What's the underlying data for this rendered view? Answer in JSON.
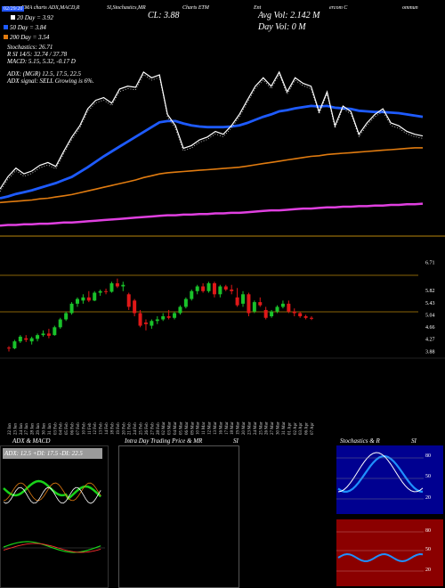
{
  "header": {
    "title_left": "EMA charts ADX,MACD,R",
    "title_mid": "SI,Stochastics,MR",
    "title_mid2": "Charts ETM",
    "title_right1": "Ent",
    "title_right2": "ercom C",
    "title_right3": "ommun",
    "close": "CL: 3.88",
    "avg_vol": "Avg Vol: 2.142  M",
    "day_vol": "Day Vol: 0   M",
    "date_tag": "02/29/20",
    "ema20": "20  Day = 3.92",
    "ema50": "50  Day = 3.84",
    "ema200": "200  Day = 3.54",
    "stoch": "Stochastics: 26.71",
    "rsi": "R                SI 14/5: 32.74  / 37.78",
    "macd": "MACD: 5.15, 5.32, -0.17 D",
    "adx": "ADX:                              (MGR) 12.5,  17.5,  22.5",
    "adx_signal": "ADX  signal: SELL Growing is 6%."
  },
  "price_axis": [
    "6.71",
    "5.82",
    "5.43",
    "5.04",
    "4.66",
    "4.27",
    "3.88"
  ],
  "bottom_labels": {
    "adx_panel": "ADX  & MACD",
    "intra_panel": "Intra  Day Trading Price  & MR",
    "intra_si": "SI",
    "stoch_panel": "Stochastics  & R",
    "stoch_si": "SI",
    "adx_readout": "ADX: 12.5  +DI: 17.5  -DI: 22.5",
    "stoch_ticks": [
      "80",
      "50",
      "20"
    ],
    "rsi_ticks": [
      "80",
      "50",
      "20"
    ]
  },
  "colors": {
    "ema_blue": "#1e5bff",
    "ema_orange": "#e07b10",
    "ema_magenta": "#e040e0",
    "up": "#19c22a",
    "down": "#e01818",
    "rsi_bg": "#8b0000",
    "stoch_bg": "#000090"
  },
  "chart_data": {
    "type": "candlestick",
    "dates": [
      "22 Jan",
      "23 Jan",
      "24 Jan",
      "27 Jan",
      "28 Jan",
      "29 Jan",
      "30 Jan",
      "31 Jan",
      "03 Feb",
      "04 Feb",
      "05 Feb",
      "06 Feb",
      "07 Feb",
      "10 Feb",
      "11 Feb",
      "12 Feb",
      "13 Feb",
      "14 Feb",
      "18 Feb",
      "19 Feb",
      "20 Feb",
      "21 Feb",
      "24 Feb",
      "25 Feb",
      "26 Feb",
      "27 Feb",
      "28 Feb",
      "02 Mar",
      "03 Mar",
      "04 Mar",
      "05 Mar",
      "06 Mar",
      "09 Mar",
      "10 Mar",
      "11 Mar",
      "12 Mar",
      "13 Mar",
      "16 Mar",
      "17 Mar",
      "18 Mar",
      "19 Mar",
      "20 Mar",
      "23 Mar",
      "24 Mar",
      "25 Mar",
      "26 Mar",
      "27 Mar",
      "30 Mar",
      "31 Mar",
      "01 Apr",
      "02 Apr",
      "03 Apr",
      "06 Apr",
      "07 Apr"
    ],
    "candles": [
      {
        "o": 4.0,
        "h": 4.05,
        "l": 3.88,
        "c": 3.98
      },
      {
        "o": 3.98,
        "h": 4.25,
        "l": 3.95,
        "c": 4.2
      },
      {
        "o": 4.2,
        "h": 4.4,
        "l": 4.15,
        "c": 4.35
      },
      {
        "o": 4.3,
        "h": 4.4,
        "l": 4.18,
        "c": 4.25
      },
      {
        "o": 4.2,
        "h": 4.35,
        "l": 4.1,
        "c": 4.3
      },
      {
        "o": 4.28,
        "h": 4.45,
        "l": 4.2,
        "c": 4.4
      },
      {
        "o": 4.4,
        "h": 4.55,
        "l": 4.35,
        "c": 4.45
      },
      {
        "o": 4.45,
        "h": 4.6,
        "l": 4.3,
        "c": 4.38
      },
      {
        "o": 4.4,
        "h": 4.7,
        "l": 4.38,
        "c": 4.65
      },
      {
        "o": 4.65,
        "h": 4.95,
        "l": 4.6,
        "c": 4.9
      },
      {
        "o": 4.9,
        "h": 5.15,
        "l": 4.85,
        "c": 5.1
      },
      {
        "o": 5.1,
        "h": 5.45,
        "l": 5.05,
        "c": 5.4
      },
      {
        "o": 5.4,
        "h": 5.6,
        "l": 5.3,
        "c": 5.55
      },
      {
        "o": 5.5,
        "h": 5.7,
        "l": 5.4,
        "c": 5.6
      },
      {
        "o": 5.6,
        "h": 5.8,
        "l": 5.45,
        "c": 5.5
      },
      {
        "o": 5.5,
        "h": 5.8,
        "l": 5.48,
        "c": 5.75
      },
      {
        "o": 5.75,
        "h": 5.85,
        "l": 5.65,
        "c": 5.8
      },
      {
        "o": 5.8,
        "h": 5.88,
        "l": 5.7,
        "c": 5.78
      },
      {
        "o": 5.78,
        "h": 6.1,
        "l": 5.75,
        "c": 6.05
      },
      {
        "o": 6.05,
        "h": 6.2,
        "l": 5.9,
        "c": 5.95
      },
      {
        "o": 5.95,
        "h": 6.1,
        "l": 5.8,
        "c": 6.0
      },
      {
        "o": 5.7,
        "h": 5.75,
        "l": 5.2,
        "c": 5.3
      },
      {
        "o": 5.5,
        "h": 5.55,
        "l": 5.0,
        "c": 5.1
      },
      {
        "o": 5.1,
        "h": 5.2,
        "l": 4.65,
        "c": 4.7
      },
      {
        "o": 4.8,
        "h": 4.9,
        "l": 4.55,
        "c": 4.75
      },
      {
        "o": 4.7,
        "h": 4.9,
        "l": 4.6,
        "c": 4.85
      },
      {
        "o": 4.85,
        "h": 5.0,
        "l": 4.75,
        "c": 4.9
      },
      {
        "o": 4.9,
        "h": 5.1,
        "l": 4.85,
        "c": 5.0
      },
      {
        "o": 5.0,
        "h": 5.2,
        "l": 4.9,
        "c": 4.95
      },
      {
        "o": 4.95,
        "h": 5.15,
        "l": 4.9,
        "c": 5.1
      },
      {
        "o": 5.1,
        "h": 5.35,
        "l": 5.05,
        "c": 5.3
      },
      {
        "o": 5.3,
        "h": 5.6,
        "l": 5.25,
        "c": 5.55
      },
      {
        "o": 5.55,
        "h": 5.85,
        "l": 5.5,
        "c": 5.8
      },
      {
        "o": 5.8,
        "h": 6.0,
        "l": 5.7,
        "c": 5.95
      },
      {
        "o": 5.95,
        "h": 6.05,
        "l": 5.75,
        "c": 5.8
      },
      {
        "o": 5.8,
        "h": 6.1,
        "l": 5.75,
        "c": 6.05
      },
      {
        "o": 6.05,
        "h": 6.1,
        "l": 5.6,
        "c": 5.7
      },
      {
        "o": 5.7,
        "h": 6.0,
        "l": 5.6,
        "c": 5.95
      },
      {
        "o": 5.95,
        "h": 6.0,
        "l": 5.8,
        "c": 5.85
      },
      {
        "o": 5.85,
        "h": 6.0,
        "l": 5.7,
        "c": 5.8
      },
      {
        "o": 5.6,
        "h": 5.9,
        "l": 5.3,
        "c": 5.35
      },
      {
        "o": 5.4,
        "h": 5.8,
        "l": 5.3,
        "c": 5.7
      },
      {
        "o": 5.7,
        "h": 5.75,
        "l": 5.0,
        "c": 5.1
      },
      {
        "o": 5.15,
        "h": 5.5,
        "l": 5.1,
        "c": 5.45
      },
      {
        "o": 5.45,
        "h": 5.6,
        "l": 5.3,
        "c": 5.35
      },
      {
        "o": 5.2,
        "h": 5.3,
        "l": 4.9,
        "c": 4.95
      },
      {
        "o": 5.0,
        "h": 5.2,
        "l": 4.95,
        "c": 5.15
      },
      {
        "o": 5.15,
        "h": 5.35,
        "l": 5.1,
        "c": 5.3
      },
      {
        "o": 5.3,
        "h": 5.5,
        "l": 5.25,
        "c": 5.4
      },
      {
        "o": 5.4,
        "h": 5.5,
        "l": 5.1,
        "c": 5.15
      },
      {
        "o": 5.15,
        "h": 5.25,
        "l": 5.0,
        "c": 5.1
      },
      {
        "o": 5.1,
        "h": 5.15,
        "l": 4.95,
        "c": 5.0
      },
      {
        "o": 5.0,
        "h": 5.05,
        "l": 4.9,
        "c": 4.95
      },
      {
        "o": 4.95,
        "h": 5.0,
        "l": 4.88,
        "c": 4.92
      }
    ],
    "ylim": [
      3.78,
      6.9
    ],
    "yticks": [
      6.71,
      5.82,
      5.43,
      5.04,
      4.66,
      4.27,
      3.88
    ],
    "ema": {
      "ema20": [
        3.75,
        3.78,
        3.82,
        3.85,
        3.88,
        3.92,
        3.96,
        4.0,
        4.05,
        4.1,
        4.18,
        4.26,
        4.35,
        4.44,
        4.52,
        4.6,
        4.68,
        4.76,
        4.84,
        4.92,
        5.0,
        5.02,
        5.02,
        4.98,
        4.95,
        4.93,
        4.92,
        4.92,
        4.92,
        4.93,
        4.95,
        4.99,
        5.04,
        5.09,
        5.13,
        5.18,
        5.2,
        5.23,
        5.25,
        5.27,
        5.26,
        5.27,
        5.24,
        5.23,
        5.22,
        5.19,
        5.18,
        5.17,
        5.17,
        5.16,
        5.15,
        5.13,
        5.11,
        5.09
      ],
      "ema50": [
        3.68,
        3.69,
        3.7,
        3.71,
        3.72,
        3.74,
        3.75,
        3.77,
        3.79,
        3.81,
        3.84,
        3.87,
        3.9,
        3.93,
        3.96,
        3.99,
        4.02,
        4.05,
        4.09,
        4.12,
        4.15,
        4.17,
        4.18,
        4.19,
        4.2,
        4.21,
        4.22,
        4.23,
        4.24,
        4.25,
        4.26,
        4.28,
        4.3,
        4.32,
        4.34,
        4.36,
        4.38,
        4.4,
        4.42,
        4.44,
        4.45,
        4.47,
        4.48,
        4.49,
        4.5,
        4.51,
        4.52,
        4.53,
        4.54,
        4.55,
        4.56,
        4.57,
        4.58,
        4.58
      ],
      "ema200": [
        3.3,
        3.31,
        3.31,
        3.32,
        3.32,
        3.33,
        3.33,
        3.34,
        3.35,
        3.35,
        3.36,
        3.37,
        3.38,
        3.39,
        3.4,
        3.41,
        3.42,
        3.43,
        3.44,
        3.45,
        3.46,
        3.47,
        3.47,
        3.48,
        3.48,
        3.49,
        3.49,
        3.5,
        3.5,
        3.51,
        3.51,
        3.52,
        3.53,
        3.54,
        3.55,
        3.55,
        3.56,
        3.57,
        3.58,
        3.58,
        3.59,
        3.6,
        3.6,
        3.61,
        3.61,
        3.62,
        3.62,
        3.63,
        3.63,
        3.64,
        3.64,
        3.65,
        3.65,
        3.66
      ]
    }
  }
}
